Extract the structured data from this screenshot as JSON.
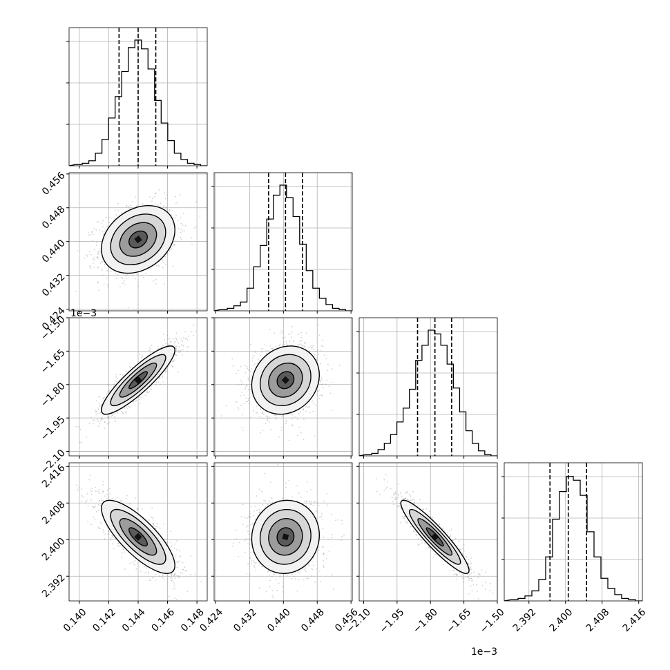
{
  "chart_data": {
    "type": "corner",
    "parameters": [
      {
        "range": [
          0.1393,
          0.1487
        ],
        "ticks": [
          0.14,
          0.142,
          0.144,
          0.146,
          0.148
        ],
        "tick_labels": [
          "0.140",
          "0.142",
          "0.144",
          "0.146",
          "0.148"
        ],
        "quantiles": [
          0.1427,
          0.144,
          0.1452
        ],
        "hist": [
          0.01,
          0.02,
          0.04,
          0.1,
          0.21,
          0.38,
          0.55,
          0.75,
          0.94,
          1.0,
          0.93,
          0.77,
          0.52,
          0.34,
          0.2,
          0.1,
          0.05,
          0.02,
          0.01
        ]
      },
      {
        "range": [
          0.4236,
          0.4563
        ],
        "ticks": [
          0.424,
          0.432,
          0.44,
          0.448,
          0.456
        ],
        "tick_labels": [
          "0.424",
          "0.432",
          "0.440",
          "0.448",
          "0.456"
        ],
        "quantiles": [
          0.4365,
          0.4405,
          0.4445
        ],
        "hist": [
          0.01,
          0.02,
          0.04,
          0.07,
          0.18,
          0.35,
          0.52,
          0.73,
          0.92,
          1.0,
          0.9,
          0.75,
          0.53,
          0.32,
          0.18,
          0.1,
          0.05,
          0.02,
          0.01
        ]
      },
      {
        "range": [
          -0.00212,
          -0.0015
        ],
        "offset_label": "1e−3",
        "ticks": [
          -0.0021,
          -0.00195,
          -0.0018,
          -0.00165,
          -0.0015
        ],
        "tick_labels": [
          "−2.10",
          "−1.95",
          "−1.80",
          "−1.65",
          "−1.50"
        ],
        "quantiles": [
          -0.001858,
          -0.00178,
          -0.001705
        ],
        "hist": [
          0.01,
          0.02,
          0.05,
          0.1,
          0.17,
          0.27,
          0.38,
          0.53,
          0.76,
          0.88,
          1.0,
          0.97,
          0.88,
          0.73,
          0.54,
          0.35,
          0.2,
          0.1,
          0.04,
          0.01
        ]
      },
      {
        "range": [
          2.3866,
          2.4168
        ],
        "ticks": [
          2.392,
          2.4,
          2.408,
          2.416
        ],
        "tick_labels": [
          "2.392",
          "2.400",
          "2.408",
          "2.416"
        ],
        "quantiles": [
          2.3966,
          2.4006,
          2.4046
        ],
        "hist": [
          0.01,
          0.02,
          0.04,
          0.08,
          0.17,
          0.35,
          0.65,
          0.87,
          0.99,
          0.96,
          0.84,
          0.55,
          0.35,
          0.18,
          0.1,
          0.05,
          0.02,
          0.01
        ]
      }
    ],
    "correlations": {
      "1-0": 0.28,
      "2-0": 0.88,
      "2-1": 0.15,
      "3-0": -0.78,
      "3-1": 0.05,
      "3-2": -0.92
    },
    "contour_levels_sigma": [
      0.5,
      1.0,
      1.5,
      2.0
    ],
    "grid": true
  }
}
